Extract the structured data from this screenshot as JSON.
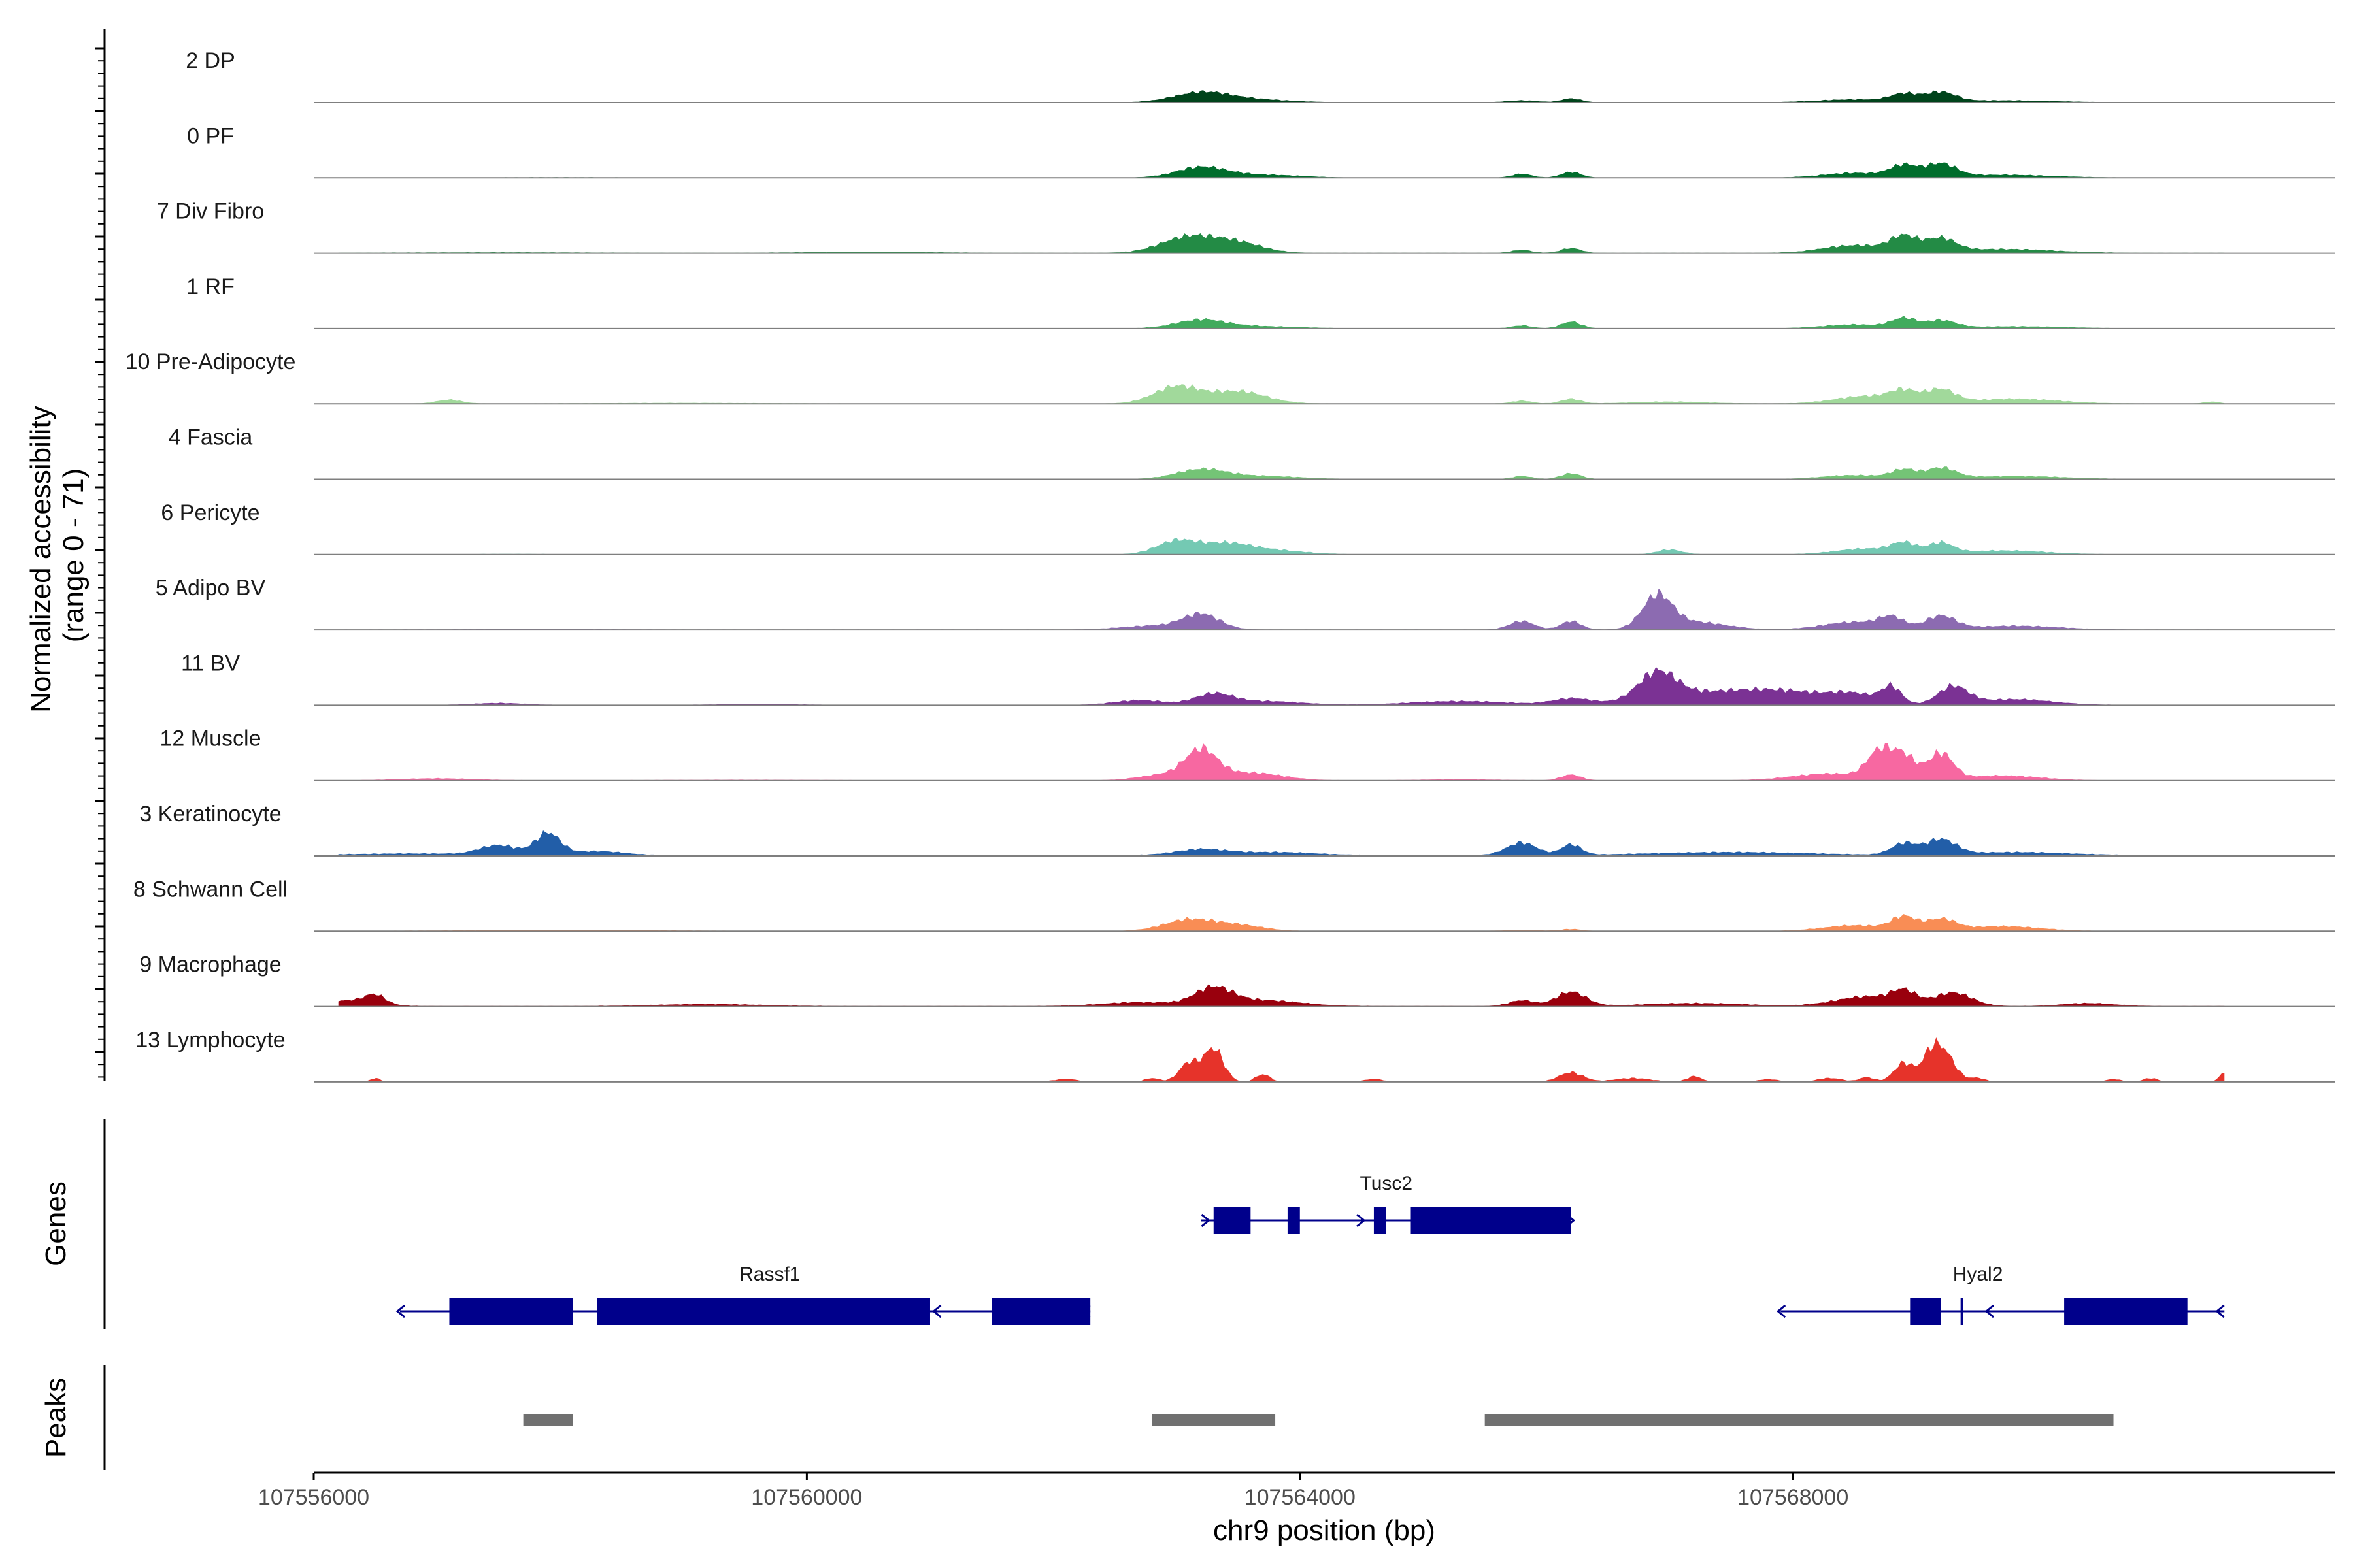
{
  "chart_data": {
    "type": "area",
    "chromosome": "chr9",
    "xlabel": "chr9 position (bp)",
    "xlim": [
      107556000,
      107572400
    ],
    "xticks": [
      107556000,
      107560000,
      107564000,
      107568000
    ],
    "xtick_labels": [
      "107556000",
      "107560000",
      "107564000",
      "107568000"
    ],
    "coverage_ylabel_line1": "Normalized accessibility",
    "coverage_ylabel_line2": "(range 0 - 71)",
    "ylim": [
      0,
      71
    ],
    "genes_label": "Genes",
    "peaks_label": "Peaks",
    "tracks": [
      {
        "name": "2 DP",
        "color": "#00441b",
        "baseline": 0.3,
        "peaks": [
          [
            107559500,
            300,
            0.3
          ],
          [
            107563200,
            220,
            10
          ],
          [
            107563600,
            300,
            3
          ],
          [
            107565800,
            120,
            2
          ],
          [
            107566200,
            80,
            4
          ],
          [
            107568500,
            300,
            3
          ],
          [
            107568900,
            110,
            8
          ],
          [
            107569200,
            120,
            10
          ],
          [
            107569700,
            400,
            2
          ]
        ]
      },
      {
        "name": "0 PF",
        "color": "#006d2c",
        "baseline": 0.3,
        "peaks": [
          [
            107558000,
            600,
            0.3
          ],
          [
            107563200,
            200,
            11
          ],
          [
            107563700,
            300,
            3
          ],
          [
            107565800,
            80,
            4
          ],
          [
            107566200,
            80,
            6
          ],
          [
            107568500,
            250,
            5
          ],
          [
            107568900,
            110,
            12
          ],
          [
            107569200,
            120,
            14
          ],
          [
            107569700,
            400,
            3
          ]
        ]
      },
      {
        "name": "7 Div Fibro",
        "color": "#238b45",
        "baseline": 0.5,
        "peaks": [
          [
            107557500,
            700,
            0.5
          ],
          [
            107560500,
            500,
            1
          ],
          [
            107563100,
            220,
            17
          ],
          [
            107563500,
            200,
            10
          ],
          [
            107565800,
            80,
            3
          ],
          [
            107566200,
            80,
            5
          ],
          [
            107568500,
            250,
            8
          ],
          [
            107568900,
            110,
            16
          ],
          [
            107569200,
            120,
            14
          ],
          [
            107569700,
            400,
            4
          ]
        ]
      },
      {
        "name": "1 RF",
        "color": "#41ab5d",
        "baseline": 0.3,
        "peaks": [
          [
            107563200,
            200,
            9
          ],
          [
            107563700,
            300,
            2
          ],
          [
            107565800,
            80,
            3
          ],
          [
            107566200,
            80,
            7
          ],
          [
            107568500,
            250,
            4
          ],
          [
            107568900,
            100,
            10
          ],
          [
            107569200,
            120,
            8
          ],
          [
            107569800,
            400,
            2
          ]
        ]
      },
      {
        "name": "10 Pre-Adipocyte",
        "color": "#a1d99b",
        "baseline": 0.4,
        "peaks": [
          [
            107557100,
            100,
            4
          ],
          [
            107559000,
            600,
            0.6
          ],
          [
            107563000,
            180,
            18
          ],
          [
            107563500,
            220,
            13
          ],
          [
            107565800,
            80,
            3
          ],
          [
            107566200,
            80,
            5
          ],
          [
            107567000,
            300,
            2
          ],
          [
            107568600,
            250,
            8
          ],
          [
            107568900,
            110,
            11
          ],
          [
            107569200,
            120,
            14
          ],
          [
            107569800,
            350,
            5
          ],
          [
            107571400,
            60,
            2
          ]
        ]
      },
      {
        "name": "4 Fascia",
        "color": "#74c476",
        "baseline": 0.3,
        "peaks": [
          [
            107563200,
            200,
            10
          ],
          [
            107563700,
            300,
            3
          ],
          [
            107565800,
            80,
            3
          ],
          [
            107566200,
            80,
            6
          ],
          [
            107568500,
            250,
            4
          ],
          [
            107568900,
            100,
            9
          ],
          [
            107569200,
            120,
            11
          ],
          [
            107569800,
            400,
            3
          ]
        ]
      },
      {
        "name": "6 Pericyte",
        "color": "#74c9b3",
        "baseline": 0.3,
        "peaks": [
          [
            107557600,
            300,
            0.4
          ],
          [
            107563000,
            160,
            14
          ],
          [
            107563400,
            200,
            11
          ],
          [
            107563800,
            250,
            4
          ],
          [
            107567000,
            100,
            5
          ],
          [
            107568600,
            250,
            6
          ],
          [
            107568900,
            100,
            10
          ],
          [
            107569200,
            100,
            11
          ],
          [
            107569700,
            350,
            4
          ]
        ]
      },
      {
        "name": "5 Adipo BV",
        "color": "#8c6bb1",
        "baseline": 0.4,
        "peaks": [
          [
            107557800,
            500,
            0.6
          ],
          [
            107562800,
            250,
            4
          ],
          [
            107563200,
            150,
            16
          ],
          [
            107565800,
            100,
            9
          ],
          [
            107566200,
            80,
            9
          ],
          [
            107566900,
            120,
            34
          ],
          [
            107567200,
            250,
            8
          ],
          [
            107568500,
            250,
            8
          ],
          [
            107568800,
            100,
            11
          ],
          [
            107569200,
            120,
            14
          ],
          [
            107569800,
            350,
            4
          ]
        ]
      },
      {
        "name": "11 BV",
        "color": "#7b3294",
        "baseline": 0.4,
        "peaks": [
          [
            107557500,
            200,
            2
          ],
          [
            107559600,
            300,
            1
          ],
          [
            107562700,
            200,
            5
          ],
          [
            107563300,
            150,
            11
          ],
          [
            107563700,
            300,
            4
          ],
          [
            107565300,
            400,
            4
          ],
          [
            107566200,
            150,
            6
          ],
          [
            107566900,
            150,
            28
          ],
          [
            107567400,
            500,
            14
          ],
          [
            107568000,
            300,
            8
          ],
          [
            107568500,
            200,
            10
          ],
          [
            107568800,
            80,
            17
          ],
          [
            107569300,
            120,
            19
          ],
          [
            107569800,
            300,
            6
          ]
        ]
      },
      {
        "name": "12 Muscle",
        "color": "#f768a1",
        "baseline": 0.3,
        "peaks": [
          [
            107557000,
            300,
            2
          ],
          [
            107559500,
            600,
            0.5
          ],
          [
            107562900,
            200,
            6
          ],
          [
            107563200,
            130,
            30
          ],
          [
            107563600,
            250,
            8
          ],
          [
            107565300,
            300,
            1
          ],
          [
            107566200,
            80,
            6
          ],
          [
            107568300,
            300,
            7
          ],
          [
            107568700,
            100,
            28
          ],
          [
            107568900,
            100,
            25
          ],
          [
            107569200,
            100,
            28
          ],
          [
            107569700,
            300,
            5
          ]
        ]
      },
      {
        "name": "3 Keratinocyte",
        "color": "#225ea8",
        "baseline": 1.0,
        "peaks": [
          [
            107556800,
            500,
            1.5
          ],
          [
            107557500,
            150,
            10
          ],
          [
            107557900,
            100,
            23
          ],
          [
            107558300,
            200,
            4
          ],
          [
            107563200,
            200,
            6
          ],
          [
            107563800,
            300,
            3
          ],
          [
            107565800,
            120,
            13
          ],
          [
            107566200,
            80,
            11
          ],
          [
            107567500,
            600,
            3
          ],
          [
            107568900,
            100,
            12
          ],
          [
            107569200,
            120,
            16
          ],
          [
            107569800,
            400,
            3
          ]
        ]
      },
      {
        "name": "8 Schwann Cell",
        "color": "#f98d55",
        "baseline": 0.3,
        "peaks": [
          [
            107558000,
            800,
            1
          ],
          [
            107563100,
            200,
            12
          ],
          [
            107563500,
            200,
            6
          ],
          [
            107565800,
            150,
            1
          ],
          [
            107566200,
            80,
            2
          ],
          [
            107568500,
            250,
            6
          ],
          [
            107568900,
            100,
            14
          ],
          [
            107569200,
            120,
            12
          ],
          [
            107569700,
            300,
            5
          ]
        ]
      },
      {
        "name": "9 Macrophage",
        "color": "#99000d",
        "baseline": 0.6,
        "peaks": [
          [
            107556300,
            200,
            6
          ],
          [
            107556500,
            80,
            9
          ],
          [
            107559200,
            400,
            2
          ],
          [
            107562700,
            300,
            4
          ],
          [
            107563300,
            150,
            18
          ],
          [
            107563700,
            300,
            6
          ],
          [
            107565800,
            100,
            6
          ],
          [
            107566200,
            120,
            15
          ],
          [
            107567200,
            400,
            3
          ],
          [
            107568600,
            250,
            10
          ],
          [
            107568900,
            100,
            13
          ],
          [
            107569300,
            150,
            14
          ],
          [
            107570400,
            200,
            3
          ]
        ]
      },
      {
        "name": "13 Lymphocyte",
        "color": "#e6332a",
        "baseline": 0.0,
        "peaks": [
          [
            107556500,
            40,
            4
          ],
          [
            107562100,
            100,
            3
          ],
          [
            107562800,
            60,
            4
          ],
          [
            107563100,
            80,
            20
          ],
          [
            107563300,
            80,
            35
          ],
          [
            107563700,
            60,
            8
          ],
          [
            107564600,
            80,
            3
          ],
          [
            107566200,
            100,
            10
          ],
          [
            107566700,
            150,
            4
          ],
          [
            107567200,
            60,
            6
          ],
          [
            107567800,
            80,
            3
          ],
          [
            107568300,
            100,
            4
          ],
          [
            107568600,
            60,
            5
          ],
          [
            107568900,
            80,
            20
          ],
          [
            107569100,
            60,
            12
          ],
          [
            107569200,
            100,
            36
          ],
          [
            107569500,
            60,
            4
          ],
          [
            107570600,
            60,
            3
          ],
          [
            107570900,
            60,
            4
          ],
          [
            107571500,
            40,
            10
          ]
        ]
      }
    ],
    "genes": [
      {
        "name": "Tusc2",
        "row": 1,
        "strand": "+",
        "start": 107563200,
        "end": 107566200,
        "label_pos": 107564700,
        "exons": [
          [
            107563300,
            107563600
          ],
          [
            107563900,
            107564000
          ],
          [
            107564600,
            107564700
          ],
          [
            107564900,
            107566200
          ]
        ]
      },
      {
        "name": "Rassf1",
        "row": 2,
        "strand": "-",
        "start": 107556700,
        "end": 107562300,
        "label_pos": 107559700,
        "exons": [
          [
            107557100,
            107558100
          ],
          [
            107558300,
            107561000
          ],
          [
            107561500,
            107562300
          ]
        ]
      },
      {
        "name": "Hyal2",
        "row": 2,
        "strand": "-",
        "start": 107567900,
        "end": 107571500,
        "label_pos": 107569500,
        "exons": [
          [
            107568950,
            107569200
          ],
          [
            107569360,
            107569380
          ],
          [
            107570200,
            107571200
          ]
        ]
      }
    ],
    "peaks_regions": [
      [
        107557700,
        107558100
      ],
      [
        107562800,
        107563800
      ],
      [
        107565500,
        107570600
      ]
    ]
  },
  "colors": {
    "gene": "#00008b",
    "peak": "#707070",
    "axis": "#000000",
    "baseline": "#7f7f7f"
  }
}
